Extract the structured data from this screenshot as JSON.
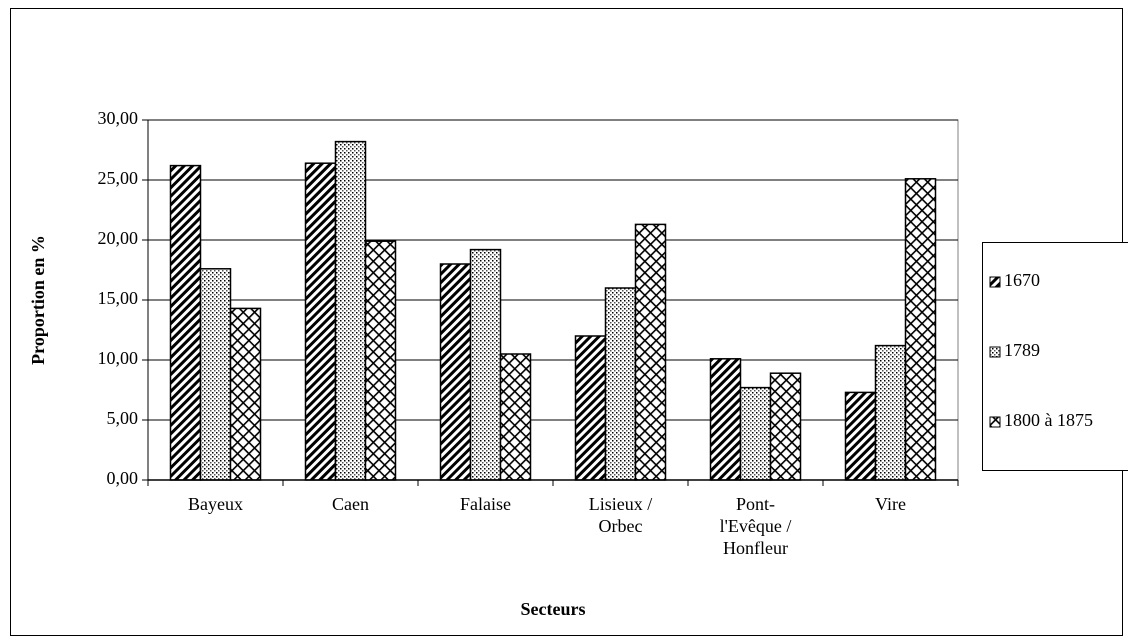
{
  "chart_data": {
    "type": "bar",
    "x_label": "Secteurs",
    "y_label": "Proportion en %",
    "categories": [
      "Bayeux",
      "Caen",
      "Falaise",
      "Lisieux /\nOrbec",
      "Pont-\nl'Evêque /\nHonfleur",
      "Vire"
    ],
    "series": [
      {
        "name": "1670",
        "pattern": "diagonal",
        "color": "#000000",
        "values": [
          26.2,
          26.4,
          18.0,
          12.0,
          10.1,
          7.3
        ]
      },
      {
        "name": "1789",
        "pattern": "dots",
        "color": "#000000",
        "values": [
          17.6,
          28.2,
          19.2,
          16.0,
          7.7,
          11.2
        ]
      },
      {
        "name": "1800 à 1875",
        "pattern": "crosshatch",
        "color": "#000000",
        "values": [
          14.3,
          19.9,
          10.5,
          21.3,
          8.9,
          25.1
        ]
      }
    ],
    "ylim": [
      0,
      30
    ],
    "yticks": [
      {
        "value": 0,
        "label": "0,00"
      },
      {
        "value": 5,
        "label": "5,00"
      },
      {
        "value": 10,
        "label": "10,00"
      },
      {
        "value": 15,
        "label": "15,00"
      },
      {
        "value": 20,
        "label": "20,00"
      },
      {
        "value": 25,
        "label": "25,00"
      },
      {
        "value": 30,
        "label": "30,00"
      }
    ],
    "grid": true,
    "legend": "right"
  }
}
